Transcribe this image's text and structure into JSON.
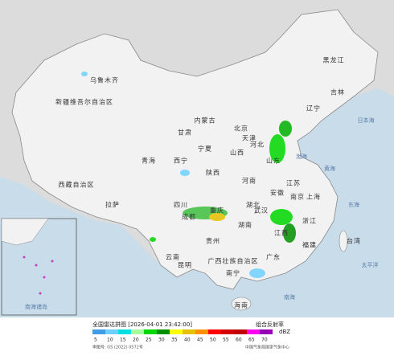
{
  "map": {
    "regions": [
      "新疆维吾尔自治区",
      "西藏自治区",
      "青海",
      "甘肃",
      "内蒙古",
      "黑龙江",
      "吉林",
      "辽宁",
      "北京",
      "天津",
      "河北",
      "山西",
      "宁夏",
      "陕西",
      "山东",
      "河南",
      "江苏",
      "安徽",
      "上海",
      "四川",
      "重庆",
      "湖北",
      "湖南",
      "江西",
      "浙江",
      "贵州",
      "云南",
      "广西壮族自治区",
      "广东",
      "福建",
      "台湾",
      "海南",
      "乌鲁木齐",
      "拉萨",
      "西宁",
      "成都",
      "昆明",
      "南宁",
      "武汉",
      "南京"
    ],
    "seas": [
      "渤海",
      "黄海",
      "东海",
      "日本海",
      "太平洋",
      "南海",
      "南海诸岛"
    ]
  },
  "legend": {
    "title": "全国雷达拼图 [2026-04-01 23:42:00]",
    "product": "组合反射率",
    "unit": "dBZ",
    "values": [
      5,
      10,
      15,
      20,
      25,
      30,
      35,
      40,
      45,
      50,
      55,
      60,
      65,
      70
    ],
    "colors": [
      "#3f9ce6",
      "#6fd0ff",
      "#00e0e0",
      "#a6fc9c",
      "#00d800",
      "#019000",
      "#ffff00",
      "#e7c000",
      "#ff9000",
      "#ff0000",
      "#d60000",
      "#c00000",
      "#ff00f0",
      "#9600b4"
    ],
    "approval": "审图号: GS (2022) 0572号",
    "source": "中国气象局国家气象中心"
  }
}
